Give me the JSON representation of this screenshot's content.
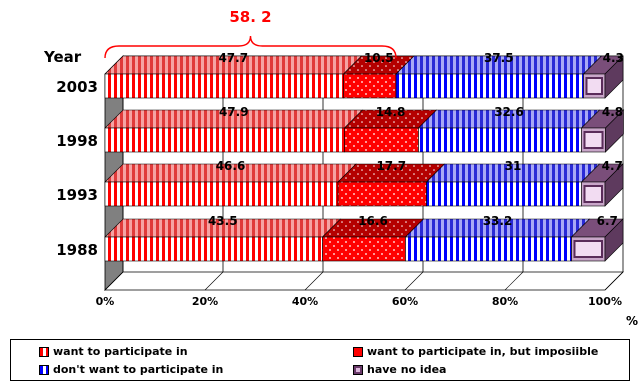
{
  "chart_data": {
    "type": "bar",
    "orientation": "horizontal",
    "stacked": true,
    "y_label": "Year",
    "x_unit": "%",
    "categories": [
      "2003",
      "1998",
      "1993",
      "1988"
    ],
    "series": [
      {
        "name": "want to participate in",
        "values": [
          47.7,
          47.9,
          46.6,
          43.5
        ],
        "color": "#ff0000",
        "pattern": "vertical-stripes-red"
      },
      {
        "name": "want to participate in, but imposiible",
        "values": [
          10.5,
          14.8,
          17.7,
          16.6
        ],
        "color": "#ff0000",
        "pattern": "dots"
      },
      {
        "name": "don't want to participate in",
        "values": [
          37.5,
          32.6,
          31,
          33.2
        ],
        "color": "#0000ff",
        "pattern": "vertical-stripes-blue"
      },
      {
        "name": "have no idea",
        "values": [
          4.3,
          4.8,
          4.7,
          6.7
        ],
        "color": "#cc99cc",
        "pattern": "box"
      }
    ],
    "value_labels": [
      [
        "47.7",
        "10.5",
        "37.5",
        "4.3"
      ],
      [
        "47.9",
        "14.8",
        "32.6",
        "4.8"
      ],
      [
        "46.6",
        "17.7",
        "31",
        "4.7"
      ],
      [
        "43.5",
        "16.6",
        "33.2",
        "6.7"
      ]
    ],
    "x_ticks": [
      "0%",
      "20%",
      "40%",
      "60%",
      "80%",
      "100%"
    ],
    "xlim": [
      0,
      100
    ],
    "annotation": {
      "text": "58. 2",
      "color": "#ff0000",
      "from": 0,
      "to": 58.2,
      "category": "2003"
    },
    "legend_position": "bottom",
    "grid": true
  }
}
